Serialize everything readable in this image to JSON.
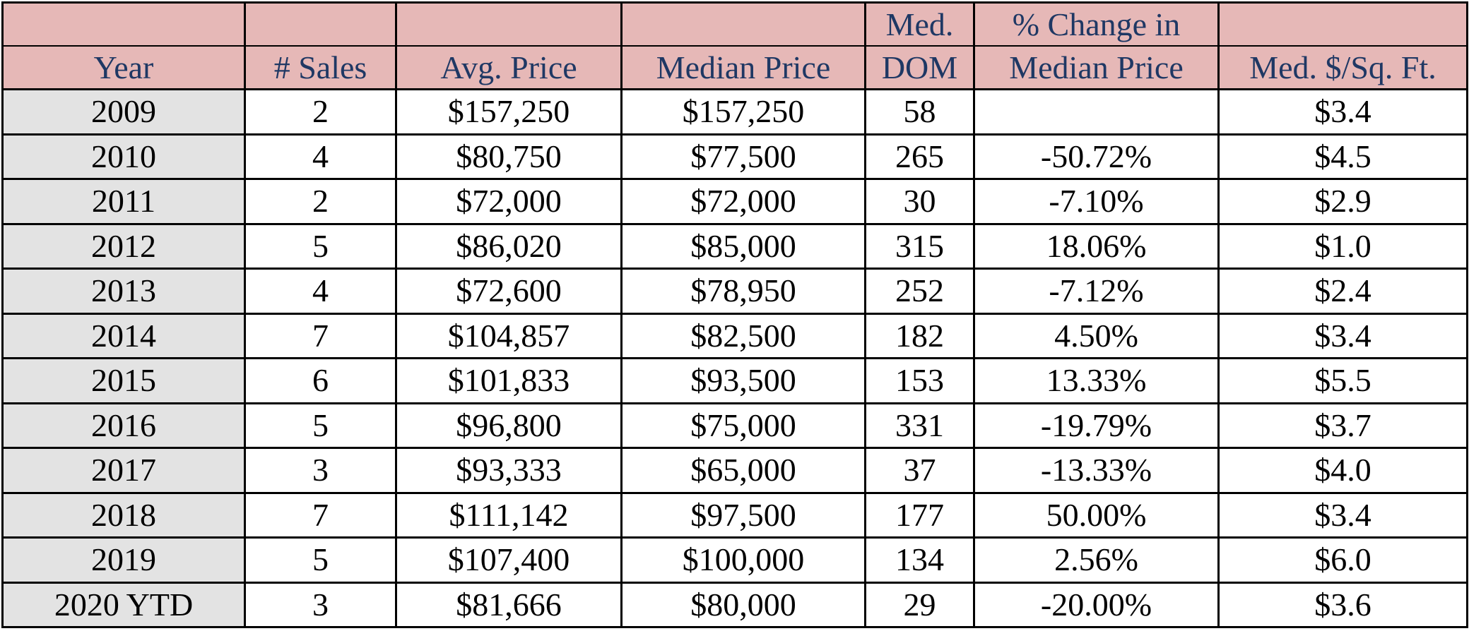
{
  "colors": {
    "header_bg": "#e6b8b7",
    "header_text": "#1f3864",
    "year_column_bg": "#e3e3e3",
    "grid_lines": "#000000"
  },
  "header": {
    "top": [
      "",
      "",
      "",
      "",
      "Med.",
      "% Change in",
      ""
    ],
    "bottom": [
      "Year",
      "# Sales",
      "Avg. Price",
      "Median Price",
      "DOM",
      "Median Price",
      "Med. $/Sq. Ft."
    ]
  },
  "rows": [
    [
      "2009",
      "2",
      "$157,250",
      "$157,250",
      "58",
      "",
      "$3.4"
    ],
    [
      "2010",
      "4",
      "$80,750",
      "$77,500",
      "265",
      "-50.72%",
      "$4.5"
    ],
    [
      "2011",
      "2",
      "$72,000",
      "$72,000",
      "30",
      "-7.10%",
      "$2.9"
    ],
    [
      "2012",
      "5",
      "$86,020",
      "$85,000",
      "315",
      "18.06%",
      "$1.0"
    ],
    [
      "2013",
      "4",
      "$72,600",
      "$78,950",
      "252",
      "-7.12%",
      "$2.4"
    ],
    [
      "2014",
      "7",
      "$104,857",
      "$82,500",
      "182",
      "4.50%",
      "$3.4"
    ],
    [
      "2015",
      "6",
      "$101,833",
      "$93,500",
      "153",
      "13.33%",
      "$5.5"
    ],
    [
      "2016",
      "5",
      "$96,800",
      "$75,000",
      "331",
      "-19.79%",
      "$3.7"
    ],
    [
      "2017",
      "3",
      "$93,333",
      "$65,000",
      "37",
      "-13.33%",
      "$4.0"
    ],
    [
      "2018",
      "7",
      "$111,142",
      "$97,500",
      "177",
      "50.00%",
      "$3.4"
    ],
    [
      "2019",
      "5",
      "$107,400",
      "$100,000",
      "134",
      "2.56%",
      "$6.0"
    ],
    [
      "2020 YTD",
      "3",
      "$81,666",
      "$80,000",
      "29",
      "-20.00%",
      "$3.6"
    ]
  ]
}
